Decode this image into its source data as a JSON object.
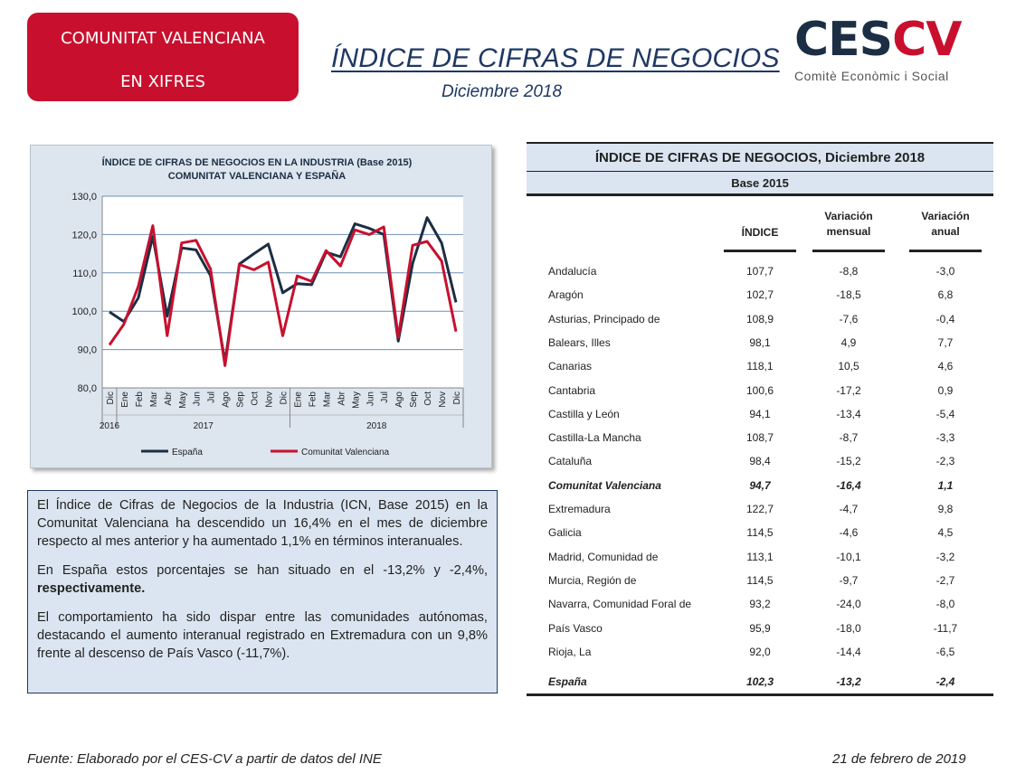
{
  "header": {
    "badge_line1": "COMUNITAT VALENCIANA",
    "badge_line2": "EN XIFRES",
    "title": "ÍNDICE DE CIFRAS DE NEGOCIOS",
    "subtitle": "Diciembre 2018",
    "logo_ces": "CES",
    "logo_cv": "CV",
    "logo_sub": "Comitè Econòmic i Social"
  },
  "chart_data": {
    "type": "line",
    "title_line1": "ÍNDICE DE CIFRAS DE NEGOCIOS  EN LA INDUSTRIA (Base 2015)",
    "title_line2": "COMUNITAT  VALENCIANA  Y ESPAÑA",
    "categories": [
      "Dic",
      "Ene",
      "Feb",
      "Mar",
      "Abr",
      "May",
      "Jun",
      "Jul",
      "Ago",
      "Sep",
      "Oct",
      "Nov",
      "Dic",
      "Ene",
      "Feb",
      "Mar",
      "Abr",
      "May",
      "Jun",
      "Jul",
      "Ago",
      "Sep",
      "Oct",
      "Nov",
      "Dic"
    ],
    "year_labels": [
      "2016",
      "2017",
      "2018"
    ],
    "ylim": [
      80,
      130
    ],
    "yticks": [
      "80,0",
      "90,0",
      "100,0",
      "110,0",
      "120,0",
      "130,0"
    ],
    "grid": true,
    "legend_position": "bottom",
    "series": [
      {
        "name": "España",
        "color": "#1c2e44",
        "values": [
          99.8,
          97.3,
          103.5,
          119.5,
          98.7,
          116.5,
          116,
          109.3,
          86.8,
          112.3,
          115,
          117.5,
          104.8,
          107.2,
          106.9,
          115.4,
          114.2,
          122.8,
          121.6,
          120,
          92.2,
          112.5,
          124.4,
          117.8,
          102.3
        ]
      },
      {
        "name": "Comunitat Valenciana",
        "color": "#c8102e",
        "values": [
          91.2,
          96.6,
          106.5,
          122.3,
          93.6,
          117.8,
          118.5,
          111,
          85.8,
          112.2,
          110.8,
          112.8,
          93.6,
          109.2,
          107.8,
          115.8,
          111.8,
          121.2,
          120,
          122,
          93.2,
          117.2,
          118.2,
          113.1,
          94.7
        ]
      }
    ]
  },
  "summary": {
    "p1": "El Índice de Cifras de Negocios de la Industria (ICN, Base 2015) en la Comunitat Valenciana ha descendido un 16,4% en el mes de diciembre respecto al mes anterior y ha aumentado 1,1% en términos interanuales.",
    "p2_normal": "En España estos porcentajes se han situado en el -13,2% y -2,4%, ",
    "p2_bold": "respectivamente.",
    "p3": "El comportamiento ha sido dispar entre las comunidades autónomas, destacando el aumento interanual registrado en Extremadura con un 9,8% frente al descenso de País Vasco (-11,7%)."
  },
  "table": {
    "title": "ÍNDICE DE CIFRAS DE NEGOCIOS, Diciembre 2018",
    "base": "Base 2015",
    "col_indice": "ÍNDICE",
    "col_mensual_1": "Variación",
    "col_mensual_2": "mensual",
    "col_anual_1": "Variación",
    "col_anual_2": "anual",
    "rows": [
      {
        "region": "Andalucía",
        "indice": "107,7",
        "mensual": "-8,8",
        "anual": "-3,0"
      },
      {
        "region": "Aragón",
        "indice": "102,7",
        "mensual": "-18,5",
        "anual": "6,8"
      },
      {
        "region": "Asturias, Principado de",
        "indice": "108,9",
        "mensual": "-7,6",
        "anual": "-0,4"
      },
      {
        "region": "Balears, Illes",
        "indice": "98,1",
        "mensual": "4,9",
        "anual": "7,7"
      },
      {
        "region": "Canarias",
        "indice": "118,1",
        "mensual": "10,5",
        "anual": "4,6"
      },
      {
        "region": "Cantabria",
        "indice": "100,6",
        "mensual": "-17,2",
        "anual": "0,9"
      },
      {
        "region": "Castilla y León",
        "indice": "94,1",
        "mensual": "-13,4",
        "anual": "-5,4"
      },
      {
        "region": "Castilla-La Mancha",
        "indice": "108,7",
        "mensual": "-8,7",
        "anual": "-3,3"
      },
      {
        "region": "Cataluña",
        "indice": "98,4",
        "mensual": "-15,2",
        "anual": "-2,3"
      },
      {
        "region": "Comunitat Valenciana",
        "indice": "94,7",
        "mensual": "-16,4",
        "anual": "1,1",
        "highlight": true
      },
      {
        "region": "Extremadura",
        "indice": "122,7",
        "mensual": "-4,7",
        "anual": "9,8"
      },
      {
        "region": "Galicia",
        "indice": "114,5",
        "mensual": "-4,6",
        "anual": "4,5"
      },
      {
        "region": "Madrid, Comunidad de",
        "indice": "113,1",
        "mensual": "-10,1",
        "anual": "-3,2"
      },
      {
        "region": "Murcia, Región de",
        "indice": "114,5",
        "mensual": "-9,7",
        "anual": "-2,7"
      },
      {
        "region": "Navarra, Comunidad Foral de",
        "indice": "93,2",
        "mensual": "-24,0",
        "anual": "-8,0"
      },
      {
        "region": "País Vasco",
        "indice": "95,9",
        "mensual": "-18,0",
        "anual": "-11,7"
      },
      {
        "region": "Rioja, La",
        "indice": "92,0",
        "mensual": "-14,4",
        "anual": "-6,5"
      },
      {
        "region": "España",
        "indice": "102,3",
        "mensual": "-13,2",
        "anual": "-2,4",
        "highlight": true
      }
    ]
  },
  "footer": {
    "source": "Fuente: Elaborado por el CES-CV a partir de datos del INE",
    "date": "21 de febrero de 2019"
  }
}
